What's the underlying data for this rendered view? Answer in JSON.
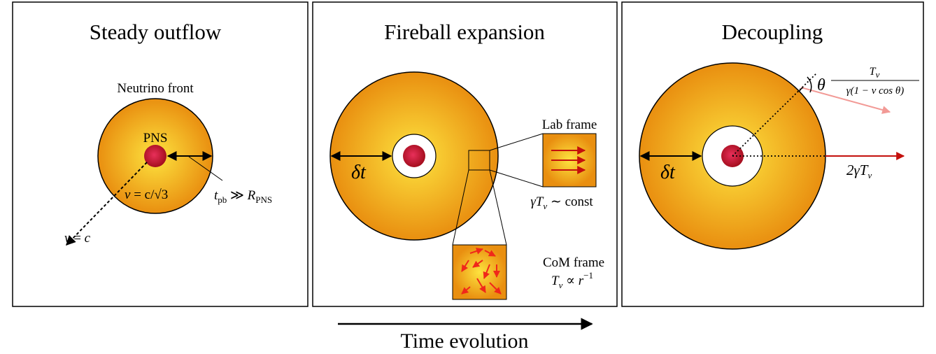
{
  "panels": [
    {
      "title": "Steady outflow",
      "front": "Neutrino front",
      "pns": "PNS",
      "sound": [
        "v",
        " = c/√3"
      ],
      "tpb": [
        "t",
        "pb",
        " ≫ ",
        "R",
        "PNS"
      ],
      "light": [
        "v",
        " = ",
        "c"
      ]
    },
    {
      "title": "Fireball expansion",
      "dt": "δt",
      "lab": "Lab frame",
      "lab_rel": [
        "γT",
        "ν",
        " ∼ const"
      ],
      "com": "CoM frame",
      "com_rel": [
        "T",
        "ν",
        " ∝ ",
        "r",
        "−1"
      ]
    },
    {
      "title": "Decoupling",
      "theta": "θ",
      "num": [
        "T",
        "ν"
      ],
      "den": "γ(1 − v cos θ)",
      "dt": "δt",
      "out": [
        "2γT",
        "ν"
      ]
    }
  ],
  "footer": "Time evolution"
}
